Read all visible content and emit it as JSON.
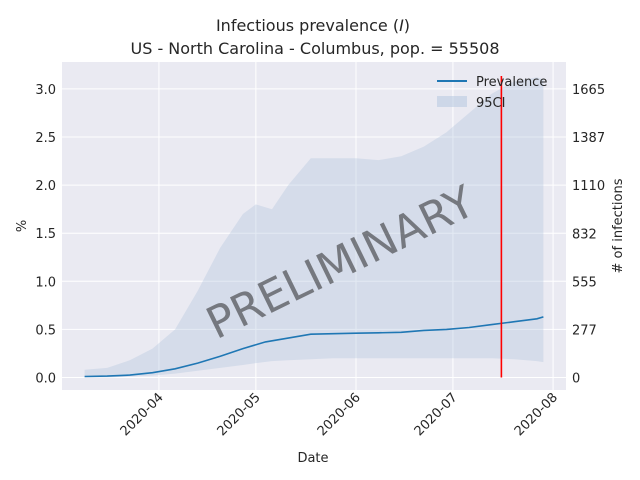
{
  "chart_data": {
    "type": "line",
    "title_line1": "Infectious prevalence (",
    "title_italic": "I",
    "title_line1_end": ")",
    "title_line2": "US - North Carolina - Columbus, pop. = 55508",
    "xlabel": "Date",
    "ylabel": "%",
    "ylabel_right": "# of infections",
    "watermark": "PRELIMINARY",
    "x_range": [
      "2020-03-02",
      "2020-08-05"
    ],
    "ylim": [
      -0.13,
      3.28
    ],
    "x_ticks": [
      {
        "date": "2020-04-01",
        "label": "2020-04"
      },
      {
        "date": "2020-05-01",
        "label": "2020-05"
      },
      {
        "date": "2020-06-01",
        "label": "2020-06"
      },
      {
        "date": "2020-07-01",
        "label": "2020-07"
      },
      {
        "date": "2020-08-01",
        "label": "2020-08"
      }
    ],
    "y_ticks": [
      0.0,
      0.5,
      1.0,
      1.5,
      2.0,
      2.5,
      3.0
    ],
    "y_tick_labels": [
      "0.0",
      "0.5",
      "1.0",
      "1.5",
      "2.0",
      "2.5",
      "3.0"
    ],
    "y_right_ticks": [
      {
        "value": 0,
        "label": "0"
      },
      {
        "value": 277,
        "label": "277"
      },
      {
        "value": 555,
        "label": "555"
      },
      {
        "value": 832,
        "label": "832"
      },
      {
        "value": 1110,
        "label": "1110"
      },
      {
        "value": 1387,
        "label": "1387"
      },
      {
        "value": 1665,
        "label": "1665"
      }
    ],
    "population": 55508,
    "vline_date": "2020-07-16",
    "legend": {
      "placement": "top-right",
      "line_label": "Prevalence",
      "band_label": "95CI"
    },
    "series": [
      {
        "name": "Prevalence",
        "x": [
          "2020-03-09",
          "2020-03-16",
          "2020-03-23",
          "2020-03-30",
          "2020-04-06",
          "2020-04-13",
          "2020-04-20",
          "2020-04-27",
          "2020-05-04",
          "2020-05-11",
          "2020-05-18",
          "2020-05-25",
          "2020-06-01",
          "2020-06-08",
          "2020-06-15",
          "2020-06-22",
          "2020-06-29",
          "2020-07-06",
          "2020-07-13",
          "2020-07-20",
          "2020-07-27",
          "2020-07-29"
        ],
        "values": [
          0.01,
          0.015,
          0.025,
          0.05,
          0.09,
          0.15,
          0.22,
          0.3,
          0.37,
          0.41,
          0.45,
          0.455,
          0.46,
          0.465,
          0.47,
          0.49,
          0.5,
          0.52,
          0.55,
          0.58,
          0.61,
          0.63
        ]
      }
    ],
    "ci_band": {
      "name": "95CI",
      "x": [
        "2020-03-09",
        "2020-03-16",
        "2020-03-23",
        "2020-03-30",
        "2020-04-06",
        "2020-04-13",
        "2020-04-20",
        "2020-04-27",
        "2020-05-01",
        "2020-05-06",
        "2020-05-11",
        "2020-05-18",
        "2020-05-25",
        "2020-06-01",
        "2020-06-08",
        "2020-06-15",
        "2020-06-22",
        "2020-06-29",
        "2020-07-06",
        "2020-07-13",
        "2020-07-20",
        "2020-07-27",
        "2020-07-29"
      ],
      "lower": [
        0.0,
        0.0,
        0.01,
        0.02,
        0.04,
        0.07,
        0.1,
        0.13,
        0.15,
        0.17,
        0.18,
        0.19,
        0.2,
        0.2,
        0.2,
        0.2,
        0.2,
        0.2,
        0.2,
        0.2,
        0.19,
        0.17,
        0.16
      ],
      "upper": [
        0.08,
        0.1,
        0.18,
        0.3,
        0.5,
        0.9,
        1.35,
        1.7,
        1.8,
        1.75,
        2.0,
        2.28,
        2.28,
        2.28,
        2.26,
        2.3,
        2.4,
        2.55,
        2.75,
        2.95,
        3.08,
        3.12,
        3.1
      ]
    }
  }
}
